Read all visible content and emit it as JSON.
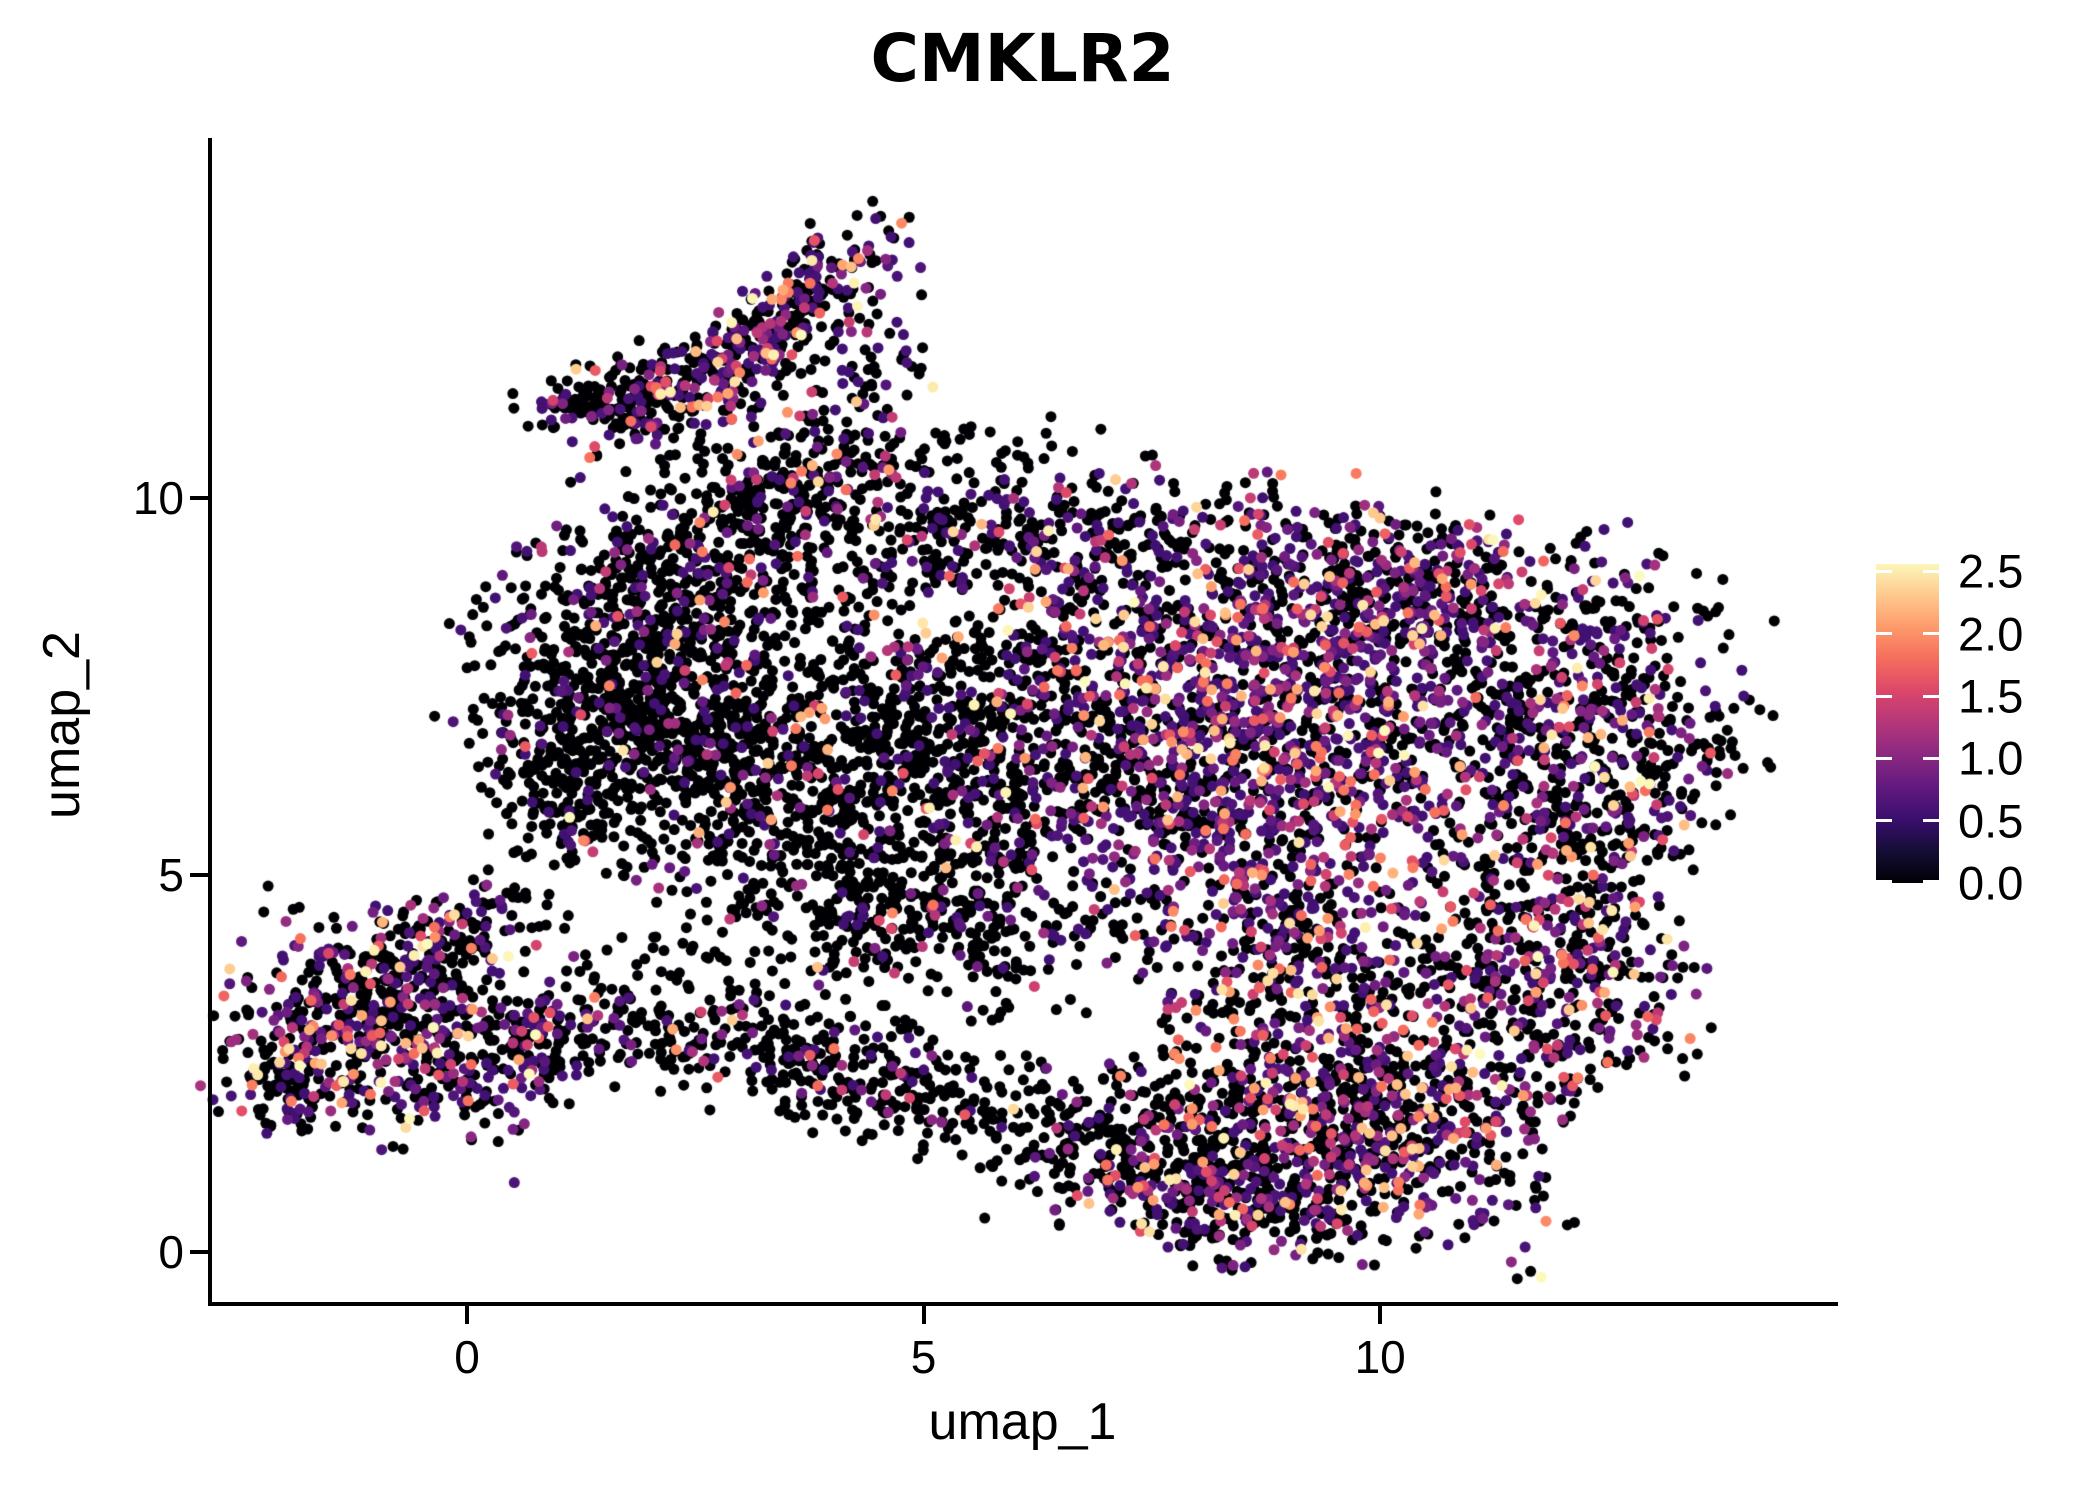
{
  "title": "CMKLR2",
  "chart_data": {
    "type": "scatter",
    "style": "single-cell UMAP feature plot (Seurat-like), expression-colored dots",
    "title": "CMKLR2",
    "xlabel": "umap_1",
    "ylabel": "umap_2",
    "x_ticks": [
      {
        "value": 0,
        "label": "0"
      },
      {
        "value": 5,
        "label": "5"
      },
      {
        "value": 10,
        "label": "10"
      }
    ],
    "y_ticks": [
      {
        "value": 0,
        "label": "0"
      },
      {
        "value": 5,
        "label": "5"
      },
      {
        "value": 10,
        "label": "10"
      }
    ],
    "xlim": [
      -2.82,
      15.0
    ],
    "ylim": [
      -0.67,
      14.8
    ],
    "grid": false,
    "legend_position": "right",
    "point_radius_px": 5.5,
    "n_points_total": 10410,
    "seed": 42,
    "value_domain_max": 2.6,
    "colorbar": {
      "range": [
        0,
        2.56
      ],
      "tick_labels": [
        {
          "value": 2.5,
          "label": "2.5"
        },
        {
          "value": 2.0,
          "label": "2.0"
        },
        {
          "value": 1.5,
          "label": "1.5"
        },
        {
          "value": 1.0,
          "label": "1.0"
        },
        {
          "value": 0.5,
          "label": "0.5"
        },
        {
          "value": 0.0,
          "label": "0.0"
        }
      ],
      "colormap": "magma",
      "stops": [
        {
          "t": 0.0,
          "hex": "#000004"
        },
        {
          "t": 0.1,
          "hex": "#140e36"
        },
        {
          "t": 0.2,
          "hex": "#3b0f70"
        },
        {
          "t": 0.3,
          "hex": "#641a80"
        },
        {
          "t": 0.4,
          "hex": "#8c2981"
        },
        {
          "t": 0.5,
          "hex": "#b73779"
        },
        {
          "t": 0.6,
          "hex": "#de4968"
        },
        {
          "t": 0.7,
          "hex": "#f7705c"
        },
        {
          "t": 0.8,
          "hex": "#fe9f6d"
        },
        {
          "t": 0.9,
          "hex": "#fecf92"
        },
        {
          "t": 1.0,
          "hex": "#fcfdbf"
        }
      ]
    },
    "clusters": [
      {
        "name": "flag-band-upper",
        "cx": 3.35,
        "cy": 12.25,
        "sx": 0.95,
        "sy": 0.27,
        "rot": 49,
        "n": 330,
        "pos": 0.45,
        "pw": 3.4
      },
      {
        "name": "flag-clump-lower-left",
        "cx": 1.95,
        "cy": 11.35,
        "sx": 0.45,
        "sy": 0.28,
        "rot": 40,
        "n": 150,
        "pos": 0.4,
        "pw": 3.6
      },
      {
        "name": "flag-left-wing",
        "cx": 1.2,
        "cy": 11.3,
        "sx": 0.3,
        "sy": 0.2,
        "rot": 20,
        "n": 55,
        "pos": 0.25,
        "pw": 4.0
      },
      {
        "name": "flag-trail-down",
        "cx": 3.6,
        "cy": 10.55,
        "sx": 0.75,
        "sy": 0.5,
        "rot": 20,
        "n": 130,
        "pos": 0.28,
        "pw": 4.0
      },
      {
        "name": "flag-right-scatter",
        "cx": 4.4,
        "cy": 12.1,
        "sx": 0.35,
        "sy": 0.6,
        "rot": 0,
        "n": 60,
        "pos": 0.35,
        "pw": 3.4
      },
      {
        "name": "left-island-core",
        "cx": -0.85,
        "cy": 2.95,
        "sx": 0.85,
        "sy": 0.7,
        "rot": -15,
        "n": 600,
        "pos": 0.4,
        "pw": 3.4
      },
      {
        "name": "left-island-top-arm",
        "cx": -0.1,
        "cy": 4.25,
        "sx": 0.6,
        "sy": 0.3,
        "rot": 25,
        "n": 120,
        "pos": 0.32,
        "pw": 3.6
      },
      {
        "name": "left-island-tip",
        "cx": -1.95,
        "cy": 2.2,
        "sx": 0.3,
        "sy": 0.35,
        "rot": 0,
        "n": 90,
        "pos": 0.38,
        "pw": 3.4
      },
      {
        "name": "left-island-right-spur",
        "cx": 0.8,
        "cy": 2.6,
        "sx": 0.5,
        "sy": 0.35,
        "rot": 10,
        "n": 120,
        "pos": 0.35,
        "pw": 3.4
      },
      {
        "name": "island-blob-bridge",
        "cx": 1.8,
        "cy": 3.3,
        "sx": 0.6,
        "sy": 0.5,
        "rot": 0,
        "n": 60,
        "pos": 0.2,
        "pw": 4.0
      },
      {
        "name": "main-left-arm",
        "cx": 1.7,
        "cy": 7.5,
        "sx": 0.75,
        "sy": 1.0,
        "rot": 10,
        "n": 650,
        "pos": 0.13,
        "pw": 4.2
      },
      {
        "name": "main-upper-left-bump",
        "cx": 2.7,
        "cy": 9.1,
        "sx": 0.9,
        "sy": 0.6,
        "rot": 0,
        "n": 300,
        "pos": 0.16,
        "pw": 4.0
      },
      {
        "name": "main-left-mid",
        "cx": 3.6,
        "cy": 6.4,
        "sx": 1.1,
        "sy": 1.15,
        "rot": 0,
        "n": 850,
        "pos": 0.16,
        "pw": 4.0
      },
      {
        "name": "main-center",
        "cx": 5.9,
        "cy": 6.9,
        "sx": 1.15,
        "sy": 1.35,
        "rot": 0,
        "n": 800,
        "pos": 0.25,
        "pw": 3.8
      },
      {
        "name": "main-top-band",
        "cx": 6.2,
        "cy": 9.55,
        "sx": 1.5,
        "sy": 0.45,
        "rot": 0,
        "n": 330,
        "pos": 0.28,
        "pw": 3.8
      },
      {
        "name": "main-right-center-dense",
        "cx": 8.6,
        "cy": 6.9,
        "sx": 1.25,
        "sy": 1.35,
        "rot": -10,
        "n": 1500,
        "pos": 0.62,
        "pw": 3.4
      },
      {
        "name": "main-top-right",
        "cx": 10.4,
        "cy": 8.7,
        "sx": 1.1,
        "sy": 0.65,
        "rot": -12,
        "n": 500,
        "pos": 0.48,
        "pw": 3.4
      },
      {
        "name": "main-right-lobe",
        "cx": 12.3,
        "cy": 7.2,
        "sx": 0.75,
        "sy": 1.0,
        "rot": -25,
        "n": 380,
        "pos": 0.38,
        "pw": 3.4
      },
      {
        "name": "main-right-mid-sparse",
        "cx": 11.4,
        "cy": 6.3,
        "sx": 0.6,
        "sy": 0.8,
        "rot": 0,
        "n": 130,
        "pos": 0.3,
        "pw": 3.6
      },
      {
        "name": "main-right-bottom-bulge",
        "cx": 11.9,
        "cy": 3.8,
        "sx": 0.75,
        "sy": 0.85,
        "rot": 20,
        "n": 420,
        "pos": 0.4,
        "pw": 2.8
      },
      {
        "name": "main-bottom-right-dense",
        "cx": 9.7,
        "cy": 1.8,
        "sx": 1.15,
        "sy": 0.85,
        "rot": -8,
        "n": 900,
        "pos": 0.45,
        "pw": 2.4
      },
      {
        "name": "main-bottom-center",
        "cx": 7.4,
        "cy": 1.3,
        "sx": 0.8,
        "sy": 0.55,
        "rot": -10,
        "n": 300,
        "pos": 0.22,
        "pw": 3.6
      },
      {
        "name": "main-bottom-arm",
        "cx": 4.2,
        "cy": 2.35,
        "sx": 1.6,
        "sy": 0.4,
        "rot": -18,
        "n": 420,
        "pos": 0.15,
        "pw": 4.0
      },
      {
        "name": "main-mid-connection",
        "cx": 5.0,
        "cy": 4.3,
        "sx": 1.0,
        "sy": 0.6,
        "rot": 0,
        "n": 280,
        "pos": 0.18,
        "pw": 4.0
      },
      {
        "name": "main-center-right-filler",
        "cx": 9.3,
        "cy": 3.9,
        "sx": 0.9,
        "sy": 0.6,
        "rot": 0,
        "n": 280,
        "pos": 0.45,
        "pw": 2.8
      },
      {
        "name": "main-left-edge",
        "cx": 0.9,
        "cy": 6.2,
        "sx": 0.4,
        "sy": 0.7,
        "rot": 30,
        "n": 140,
        "pos": 0.12,
        "pw": 4.5
      },
      {
        "name": "main-topleft-trail",
        "cx": 3.4,
        "cy": 9.9,
        "sx": 0.6,
        "sy": 0.4,
        "rot": 30,
        "n": 120,
        "pos": 0.2,
        "pw": 4.0
      },
      {
        "name": "main-far-right-rim",
        "cx": 13.1,
        "cy": 6.0,
        "sx": 0.35,
        "sy": 0.8,
        "rot": -30,
        "n": 110,
        "pos": 0.3,
        "pw": 3.5
      },
      {
        "name": "main-right-hole-rim",
        "cx": 12.0,
        "cy": 5.3,
        "sx": 0.5,
        "sy": 0.4,
        "rot": 0,
        "n": 60,
        "pos": 0.3,
        "pw": 3.5
      },
      {
        "name": "main-bottom-tip",
        "cx": 8.6,
        "cy": 0.6,
        "sx": 0.7,
        "sy": 0.4,
        "rot": 0,
        "n": 180,
        "pos": 0.4,
        "pw": 2.6
      },
      {
        "name": "main-top-sparse",
        "cx": 5.2,
        "cy": 10.55,
        "sx": 1.0,
        "sy": 0.3,
        "rot": 0,
        "n": 45,
        "pos": 0.2,
        "pw": 4.0
      }
    ]
  },
  "colors": {
    "background": "#ffffff",
    "axis": "#000000",
    "text": "#000000",
    "zero_expression_dot": "#000004",
    "legend_tick_mark": "#ffffff"
  }
}
